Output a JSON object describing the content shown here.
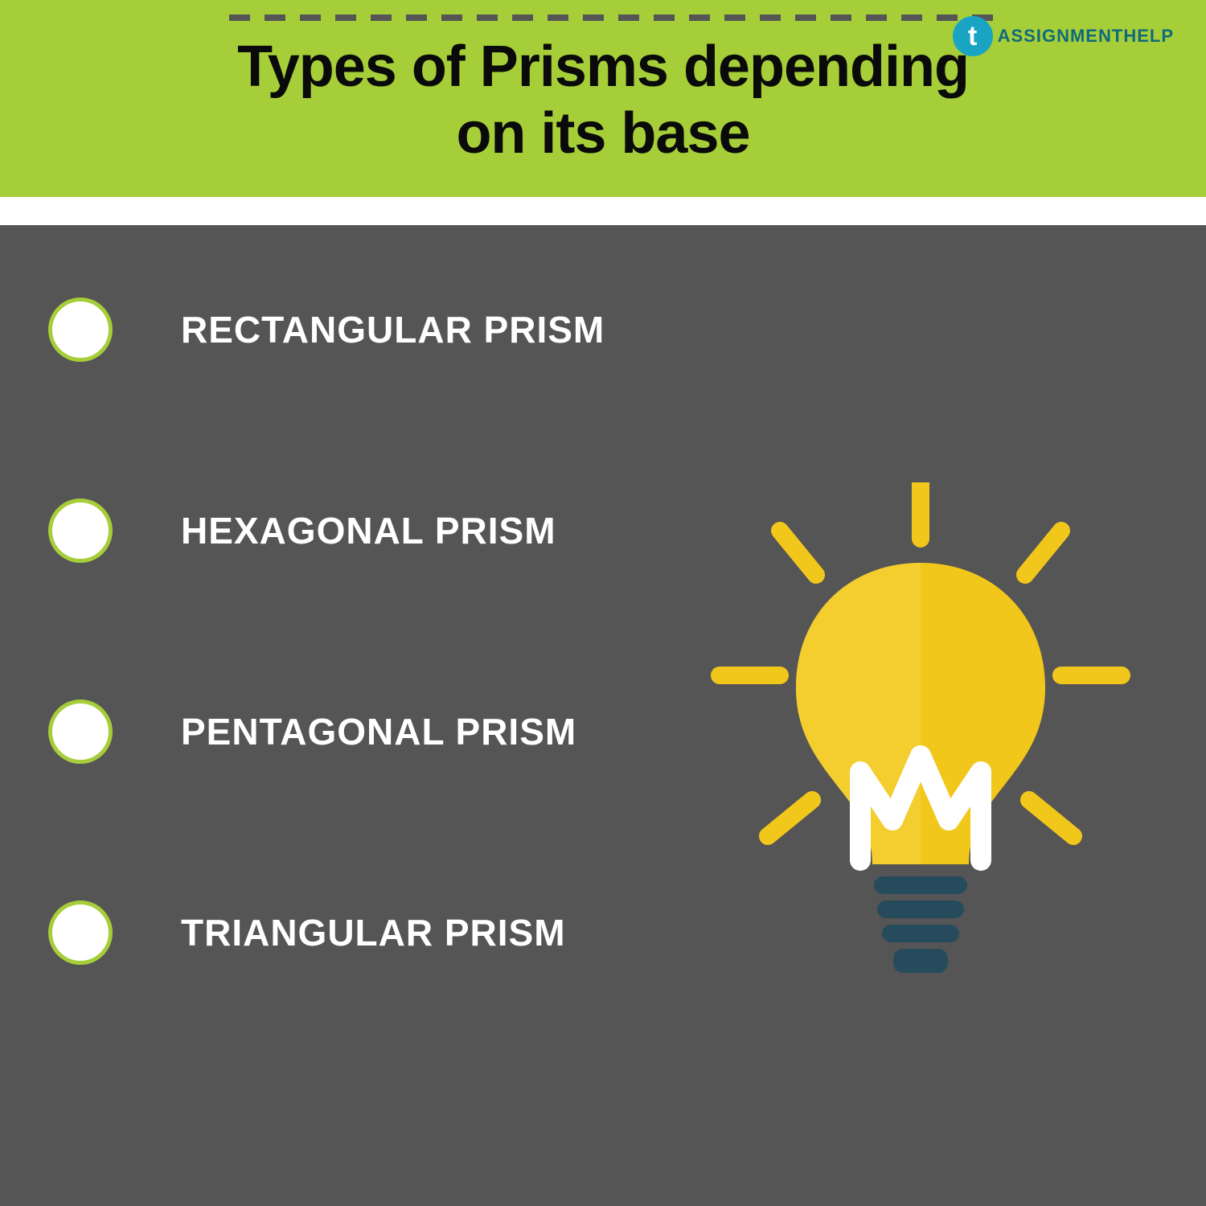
{
  "colors": {
    "header_bg": "#a6ce39",
    "body_bg": "#555555",
    "title_color": "#0a0a0a",
    "label_color": "#ffffff",
    "bullet_fill": "#ffffff",
    "bullet_border": "#a6ce39",
    "dash_color": "#555555",
    "logo_circle": "#1aa4c4",
    "logo_text": "#0f6b7a",
    "bulb_yellow": "#f2c71b",
    "bulb_yellow_light": "#f6d23e",
    "bulb_base": "#264b5c",
    "bulb_filament": "#ffffff",
    "bulb_ray": "#f2c71b"
  },
  "typography": {
    "title_fontsize": 72,
    "label_fontsize": 46,
    "logo_fontsize": 22
  },
  "layout": {
    "bullet_diameter": 80,
    "bullet_border_width": 5,
    "dash_count": 22
  },
  "title_line1": "Types of Prisms depending",
  "title_line2": "on its base",
  "logo": {
    "icon_letter": "t",
    "word1": "ASSIGNMENT",
    "word2": "HELP"
  },
  "items": [
    {
      "label": "RECTANGULAR PRISM"
    },
    {
      "label": "HEXAGONAL PRISM"
    },
    {
      "label": "PENTAGONAL PRISM"
    },
    {
      "label": "TRIANGULAR PRISM"
    }
  ]
}
